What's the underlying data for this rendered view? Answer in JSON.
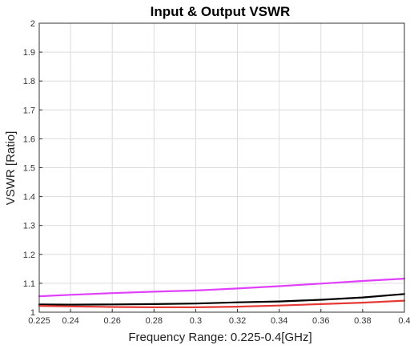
{
  "chart_data": {
    "type": "line",
    "title": "Input & Output VSWR",
    "xlabel": "Frequency Range: 0.225-0.4[GHz]",
    "ylabel": "VSWR [Ratio]",
    "xlim": [
      0.225,
      0.4
    ],
    "ylim": [
      1,
      2
    ],
    "x_ticks": [
      0.225,
      0.24,
      0.26,
      0.28,
      0.3,
      0.32,
      0.34,
      0.36,
      0.38,
      0.4
    ],
    "x_tick_labels": [
      "0.225",
      "0.24",
      "0.26",
      "0.28",
      "0.3",
      "0.32",
      "0.34",
      "0.36",
      "0.38",
      "0.4"
    ],
    "y_ticks": [
      1,
      1.1,
      1.2,
      1.3,
      1.4,
      1.5,
      1.6,
      1.7,
      1.8,
      1.9,
      2
    ],
    "y_tick_labels": [
      "1",
      "1.1",
      "1.2",
      "1.3",
      "1.4",
      "1.5",
      "1.6",
      "1.7",
      "1.8",
      "1.9",
      "2"
    ],
    "grid": true,
    "series": [
      {
        "color": "#e040fb",
        "x": [
          0.225,
          0.24,
          0.26,
          0.28,
          0.3,
          0.32,
          0.34,
          0.36,
          0.38,
          0.4
        ],
        "values": [
          1.055,
          1.06,
          1.066,
          1.071,
          1.075,
          1.082,
          1.09,
          1.099,
          1.108,
          1.116
        ]
      },
      {
        "color": "#000000",
        "x": [
          0.225,
          0.24,
          0.26,
          0.28,
          0.3,
          0.32,
          0.34,
          0.36,
          0.38,
          0.4
        ],
        "values": [
          1.027,
          1.026,
          1.027,
          1.028,
          1.03,
          1.034,
          1.037,
          1.043,
          1.051,
          1.063
        ]
      },
      {
        "color": "#e53935",
        "x": [
          0.225,
          0.24,
          0.26,
          0.28,
          0.3,
          0.32,
          0.34,
          0.36,
          0.38,
          0.4
        ],
        "values": [
          1.022,
          1.02,
          1.018,
          1.017,
          1.017,
          1.019,
          1.023,
          1.028,
          1.033,
          1.04
        ]
      }
    ]
  }
}
